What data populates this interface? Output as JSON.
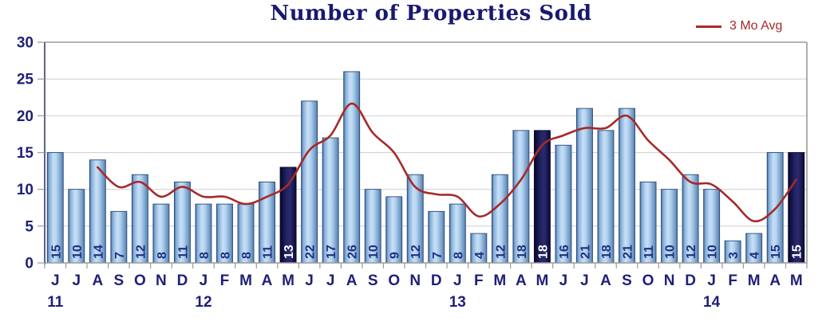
{
  "title": "Number of Properties Sold",
  "legend": {
    "label": "3 Mo Avg"
  },
  "chart_data": {
    "type": "bar",
    "title": "Number of Properties Sold",
    "categories": [
      "J",
      "J",
      "A",
      "S",
      "O",
      "N",
      "D",
      "J",
      "F",
      "M",
      "A",
      "M",
      "J",
      "J",
      "A",
      "S",
      "O",
      "N",
      "D",
      "J",
      "F",
      "M",
      "A",
      "M",
      "J",
      "J",
      "A",
      "S",
      "O",
      "N",
      "D",
      "J",
      "F",
      "M",
      "A",
      "M"
    ],
    "year_markers": [
      {
        "index": 0,
        "label": "11"
      },
      {
        "index": 7,
        "label": "12"
      },
      {
        "index": 19,
        "label": "13"
      },
      {
        "index": 31,
        "label": "14"
      }
    ],
    "series": [
      {
        "name": "Properties Sold",
        "type": "bar",
        "values": [
          15,
          10,
          14,
          7,
          12,
          8,
          11,
          8,
          8,
          8,
          11,
          13,
          22,
          17,
          26,
          10,
          9,
          12,
          7,
          8,
          4,
          12,
          18,
          18,
          16,
          21,
          18,
          21,
          11,
          10,
          12,
          10,
          3,
          4,
          15,
          15
        ],
        "highlighted_indices": [
          11,
          23,
          35
        ]
      },
      {
        "name": "3 Mo Avg",
        "type": "line",
        "start_index": 2,
        "values": [
          13,
          10.33,
          11,
          9,
          10.33,
          9,
          9,
          8,
          9,
          10.67,
          15.33,
          17.33,
          21.67,
          17.67,
          15,
          10.33,
          9.33,
          9,
          6.33,
          8,
          11.33,
          16,
          17.33,
          18.33,
          18.33,
          20,
          16.67,
          14,
          11,
          10.67,
          8.33,
          5.67,
          7.33,
          11.33
        ]
      }
    ],
    "xlabel": "",
    "ylabel": "",
    "ylim": [
      0,
      30
    ],
    "yticks": [
      0,
      5,
      10,
      15,
      20,
      25,
      30
    ],
    "grid": true,
    "legend_position": "top-right",
    "colors": {
      "title_navy": "#191970",
      "navy_text": "#1f1f78",
      "line_red": "#a52a2a",
      "grid": "#d4d4d4",
      "axis_gray": "#9a9a9a",
      "axis_left": "#3a3a6e",
      "bar_stroke": "#2c4a78",
      "bar_dark_stroke": "#060628",
      "value_label_light": "#1f2f80",
      "value_label_dark": "#ffffff",
      "bar_light_stops": [
        [
          "0%",
          "#41699b"
        ],
        [
          "12%",
          "#85aed8"
        ],
        [
          "40%",
          "#c8e0f7"
        ],
        [
          "58%",
          "#b2d2ef"
        ],
        [
          "88%",
          "#7099c4"
        ],
        [
          "100%",
          "#4f7bab"
        ]
      ],
      "bar_dark_stops": [
        [
          "0%",
          "#07072e"
        ],
        [
          "40%",
          "#232364"
        ],
        [
          "62%",
          "#2a2a6e"
        ],
        [
          "100%",
          "#0a0a38"
        ]
      ]
    }
  }
}
